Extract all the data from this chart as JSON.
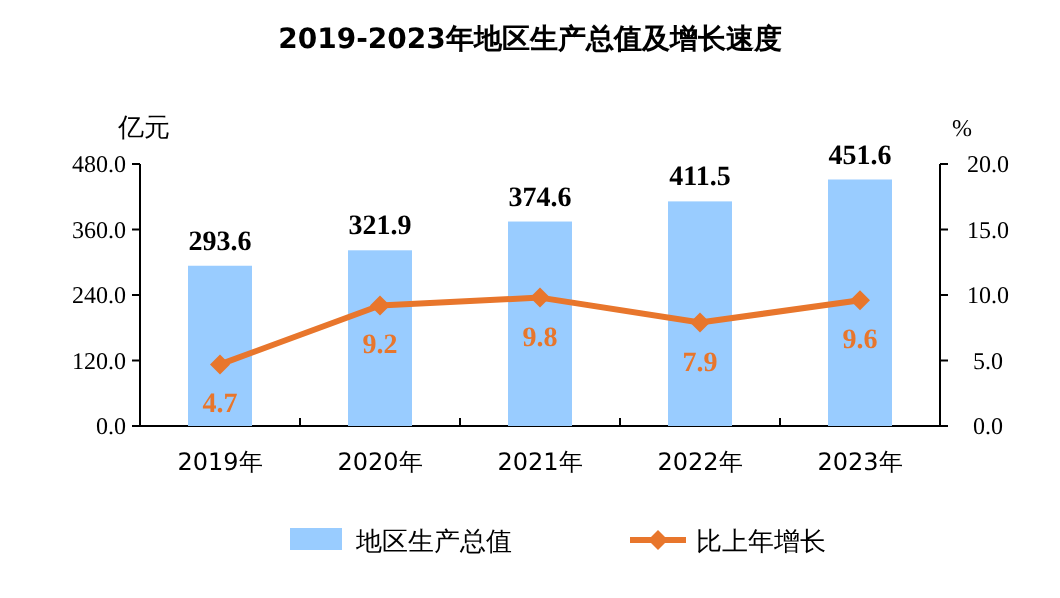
{
  "chart_data": {
    "type": "bar",
    "title": "2019-2023年地区生产总值及增长速度",
    "ylabel": "亿元",
    "y2label": "%",
    "categories": [
      "2019年",
      "2020年",
      "2021年",
      "2022年",
      "2023年"
    ],
    "series": [
      {
        "name": "地区生产总值",
        "color": "#99ccff",
        "values": [
          293.6,
          321.9,
          374.6,
          411.5,
          451.6
        ]
      },
      {
        "name": "比上年增长",
        "type": "line",
        "axis": "y2",
        "color": "#e8762c",
        "values": [
          4.7,
          9.2,
          9.8,
          7.9,
          9.6
        ]
      }
    ],
    "ylim": [
      0,
      480
    ],
    "yticks": [
      {
        "value": 0,
        "label": "0.0"
      },
      {
        "value": 120,
        "label": "120.0"
      },
      {
        "value": 240,
        "label": "240.0"
      },
      {
        "value": 360,
        "label": "360.0"
      },
      {
        "value": 480,
        "label": "480.0"
      }
    ],
    "y2lim": [
      0,
      20
    ],
    "y2ticks": [
      {
        "value": 0,
        "label": "0.0"
      },
      {
        "value": 5,
        "label": "5.0"
      },
      {
        "value": 10,
        "label": "10.0"
      },
      {
        "value": 15,
        "label": "15.0"
      },
      {
        "value": 20,
        "label": "20.0"
      }
    ],
    "marker": "diamond",
    "data_labels": true,
    "legend": "bottom",
    "grid": false
  }
}
